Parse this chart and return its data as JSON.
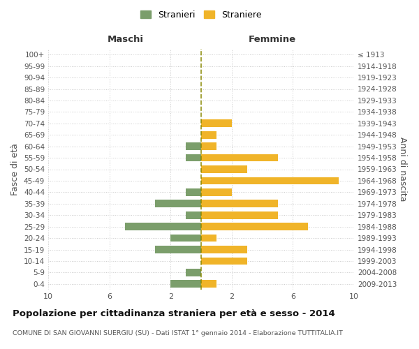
{
  "age_groups": [
    "0-4",
    "5-9",
    "10-14",
    "15-19",
    "20-24",
    "25-29",
    "30-34",
    "35-39",
    "40-44",
    "45-49",
    "50-54",
    "55-59",
    "60-64",
    "65-69",
    "70-74",
    "75-79",
    "80-84",
    "85-89",
    "90-94",
    "95-99",
    "100+"
  ],
  "birth_years": [
    "2009-2013",
    "2004-2008",
    "1999-2003",
    "1994-1998",
    "1989-1993",
    "1984-1988",
    "1979-1983",
    "1974-1978",
    "1969-1973",
    "1964-1968",
    "1959-1963",
    "1954-1958",
    "1949-1953",
    "1944-1948",
    "1939-1943",
    "1934-1938",
    "1929-1933",
    "1924-1928",
    "1919-1923",
    "1914-1918",
    "≤ 1913"
  ],
  "males": [
    2,
    1,
    0,
    3,
    2,
    5,
    1,
    3,
    1,
    0,
    0,
    1,
    1,
    0,
    0,
    0,
    0,
    0,
    0,
    0,
    0
  ],
  "females": [
    1,
    0,
    3,
    3,
    1,
    7,
    5,
    5,
    2,
    9,
    3,
    5,
    1,
    1,
    2,
    0,
    0,
    0,
    0,
    0,
    0
  ],
  "male_color": "#7B9E6B",
  "female_color": "#F0B429",
  "male_label": "Stranieri",
  "female_label": "Straniere",
  "title": "Popolazione per cittadinanza straniera per età e sesso - 2014",
  "subtitle": "COMUNE DI SAN GIOVANNI SUERGIU (SU) - Dati ISTAT 1° gennaio 2014 - Elaborazione TUTTITALIA.IT",
  "xlabel_left": "Maschi",
  "xlabel_right": "Femmine",
  "ylabel": "Fasce di età",
  "ylabel_right": "Anni di nascita",
  "xlim": 10,
  "bg_color": "#ffffff",
  "grid_color": "#cccccc",
  "dashed_line_color": "#888800"
}
